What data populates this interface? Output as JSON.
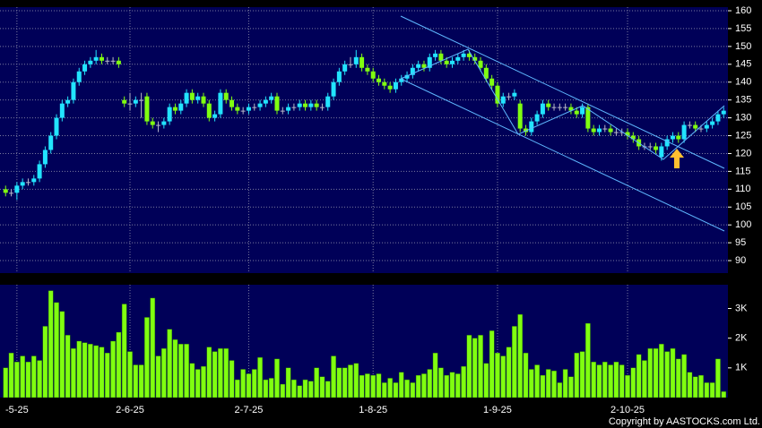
{
  "chart_data": [
    {
      "type": "candlestick",
      "categories": [
        null,
        null,
        "-5-25",
        null,
        null,
        null,
        null,
        null,
        null,
        null,
        null,
        null,
        null,
        null,
        null,
        null,
        null,
        null,
        null,
        null,
        null,
        null,
        "2-6-25",
        null,
        null,
        null,
        null,
        null,
        null,
        null,
        null,
        null,
        null,
        null,
        null,
        null,
        null,
        null,
        null,
        null,
        null,
        null,
        null,
        "2-7-25",
        null,
        null,
        null,
        null,
        null,
        null,
        null,
        null,
        null,
        null,
        null,
        null,
        null,
        null,
        null,
        null,
        null,
        null,
        null,
        null,
        null,
        "1-8-25",
        null,
        null,
        null,
        null,
        null,
        null,
        null,
        null,
        null,
        null,
        null,
        null,
        null,
        null,
        null,
        null,
        null,
        null,
        null,
        null,
        null,
        "1-9-25",
        null,
        null,
        null,
        null,
        null,
        null,
        null,
        null,
        null,
        null,
        null,
        null,
        null,
        null,
        null,
        null,
        null,
        null,
        null,
        null,
        null,
        null,
        "2-10-25",
        null,
        null,
        null,
        null,
        null,
        null,
        null,
        null,
        null,
        null,
        null,
        null,
        null,
        null,
        null,
        null,
        null
      ],
      "open": [
        110,
        109,
        109,
        111,
        112,
        112,
        113,
        117,
        121,
        125,
        130,
        134,
        135,
        140,
        143,
        145,
        146,
        147,
        146,
        146,
        146,
        135,
        134,
        134,
        135,
        136,
        129,
        128,
        128,
        129,
        133,
        132,
        134,
        137,
        135,
        136,
        134,
        130,
        131,
        137,
        135,
        133,
        132,
        132,
        133,
        133,
        134,
        135,
        136,
        132,
        132,
        133,
        133,
        134,
        133,
        134,
        133,
        133,
        136,
        140,
        143,
        145,
        145,
        147,
        144,
        143,
        141,
        140,
        139,
        138,
        140,
        141,
        142,
        144,
        145,
        144,
        147,
        148,
        146,
        145,
        146,
        147,
        148,
        147,
        146,
        144,
        141,
        139,
        134,
        136,
        136,
        134,
        127,
        126,
        129,
        131,
        134,
        133,
        133,
        133,
        133,
        132,
        131,
        133,
        127,
        126,
        127,
        127,
        126,
        126,
        126,
        125,
        124,
        122,
        122,
        122,
        119,
        122,
        124,
        125,
        124,
        128,
        128,
        127,
        127,
        128,
        129,
        131
      ],
      "high": [
        111,
        110,
        112,
        113,
        113,
        114,
        118,
        122,
        126,
        131,
        135,
        136,
        141,
        144,
        146,
        147,
        149,
        148,
        147,
        147,
        147,
        136,
        137,
        136,
        137,
        137,
        130,
        129,
        130,
        134,
        134,
        135,
        138,
        138,
        137,
        137,
        135,
        132,
        138,
        138,
        136,
        134,
        133,
        134,
        134,
        135,
        136,
        137,
        137,
        133,
        134,
        134,
        135,
        135,
        135,
        135,
        134,
        137,
        141,
        144,
        146,
        147,
        149,
        148,
        145,
        144,
        142,
        141,
        140,
        141,
        142,
        143,
        145,
        146,
        146,
        148,
        149,
        149,
        147,
        147,
        148,
        149,
        149,
        148,
        147,
        145,
        142,
        140,
        137,
        137,
        138,
        135,
        128,
        130,
        132,
        135,
        135,
        134,
        134,
        134,
        134,
        133,
        134,
        134,
        128,
        128,
        128,
        128,
        127,
        127,
        127,
        126,
        125,
        123,
        123,
        123,
        123,
        125,
        126,
        126,
        129,
        129,
        129,
        128,
        129,
        130,
        132,
        133
      ],
      "low": [
        108,
        108,
        107,
        110,
        111,
        111,
        112,
        116,
        120,
        124,
        129,
        133,
        134,
        139,
        142,
        144,
        145,
        145,
        145,
        145,
        144,
        133,
        132,
        133,
        130,
        128,
        127,
        126,
        127,
        128,
        131,
        131,
        133,
        134,
        134,
        133,
        129,
        129,
        130,
        134,
        132,
        131,
        131,
        131,
        132,
        132,
        133,
        134,
        131,
        131,
        131,
        132,
        132,
        132,
        132,
        132,
        132,
        132,
        135,
        139,
        142,
        144,
        144,
        143,
        142,
        140,
        139,
        138,
        137,
        137,
        139,
        140,
        141,
        143,
        143,
        143,
        146,
        145,
        144,
        144,
        145,
        146,
        146,
        145,
        143,
        140,
        138,
        133,
        133,
        135,
        135,
        126,
        125,
        125,
        128,
        130,
        132,
        132,
        132,
        132,
        131,
        130,
        130,
        126,
        125,
        125,
        126,
        125,
        125,
        125,
        124,
        123,
        121,
        121,
        121,
        120,
        118,
        121,
        123,
        123,
        123,
        127,
        126,
        126,
        126,
        127,
        128,
        130
      ],
      "close": [
        109,
        109,
        111,
        112,
        112,
        113,
        117,
        121,
        125,
        130,
        134,
        135,
        140,
        143,
        145,
        146,
        147,
        146,
        146,
        146,
        145,
        134,
        134,
        135,
        135,
        129,
        128,
        128,
        129,
        133,
        132,
        134,
        137,
        135,
        136,
        134,
        130,
        131,
        137,
        135,
        133,
        132,
        132,
        133,
        133,
        134,
        135,
        136,
        132,
        132,
        133,
        133,
        134,
        133,
        134,
        133,
        133,
        136,
        140,
        143,
        145,
        145,
        147,
        144,
        143,
        141,
        140,
        139,
        138,
        140,
        141,
        142,
        144,
        145,
        144,
        147,
        148,
        146,
        145,
        146,
        147,
        148,
        147,
        146,
        144,
        141,
        139,
        134,
        136,
        136,
        137,
        127,
        126,
        129,
        131,
        134,
        133,
        133,
        133,
        133,
        132,
        131,
        133,
        127,
        126,
        127,
        127,
        126,
        126,
        126,
        125,
        124,
        122,
        122,
        122,
        121,
        122,
        124,
        125,
        124,
        128,
        128,
        127,
        127,
        128,
        129,
        131,
        132
      ],
      "up_color": "#22e4ff",
      "down_color": "#80ff10",
      "flat_color": "#b8b8c8",
      "ylim": [
        86.5,
        161
      ],
      "yticks": [
        90,
        95,
        100,
        105,
        110,
        115,
        120,
        125,
        130,
        135,
        140,
        145,
        150,
        155,
        160
      ],
      "grid": true
    },
    {
      "type": "bar",
      "values": [
        1000,
        1500,
        1200,
        1400,
        1200,
        1400,
        1250,
        2400,
        3600,
        3200,
        2900,
        2100,
        1650,
        1900,
        1850,
        1800,
        1750,
        1700,
        1500,
        1900,
        2200,
        3150,
        1550,
        1100,
        1100,
        2700,
        3350,
        1400,
        1650,
        2300,
        1950,
        1800,
        1800,
        1150,
        950,
        1050,
        1700,
        1550,
        1650,
        1650,
        1250,
        600,
        950,
        800,
        950,
        1350,
        600,
        650,
        1300,
        450,
        1000,
        600,
        400,
        600,
        550,
        1000,
        700,
        550,
        1400,
        1000,
        1000,
        1100,
        1150,
        750,
        800,
        750,
        800,
        500,
        650,
        500,
        850,
        600,
        500,
        750,
        800,
        950,
        1500,
        1000,
        750,
        850,
        800,
        1050,
        2100,
        2000,
        2100,
        1150,
        2250,
        1500,
        1400,
        1700,
        2400,
        2800,
        1500,
        950,
        1100,
        750,
        950,
        900,
        500,
        950,
        700,
        1500,
        1550,
        2500,
        1200,
        1100,
        1200,
        1100,
        1200,
        1100,
        750,
        1000,
        1450,
        1250,
        1650,
        1650,
        1800,
        1550,
        1650,
        1300,
        1450,
        850,
        700,
        750,
        500,
        500,
        1300,
        200
      ],
      "color": "#80ff10",
      "ylim": [
        0,
        3800
      ],
      "yticks": [
        {
          "value": 1000,
          "label": "1K"
        },
        {
          "value": 2000,
          "label": "2K"
        },
        {
          "value": 3000,
          "label": "3K"
        }
      ],
      "grid": false
    }
  ],
  "footer": "Copyright by AASTOCKS.com Ltd."
}
